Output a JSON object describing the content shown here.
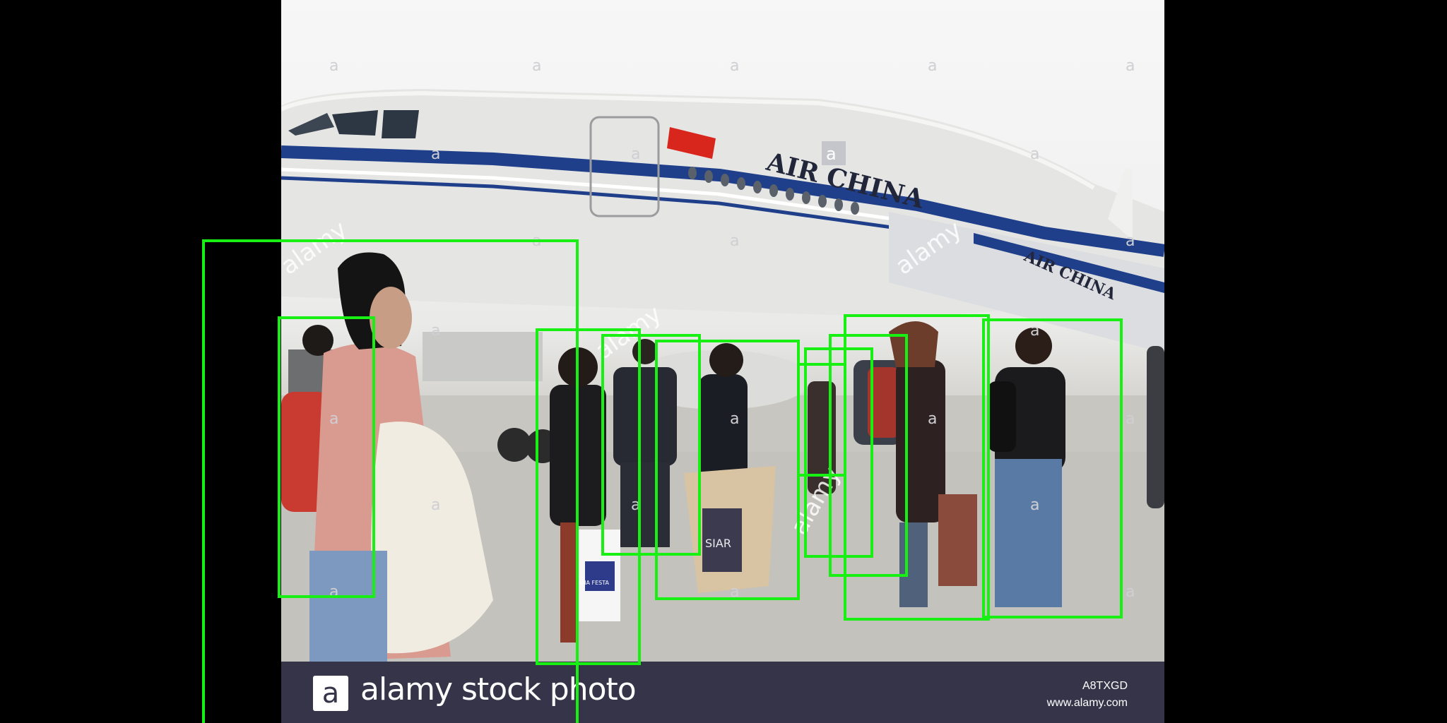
{
  "image": {
    "subject": "passengers walking toward a plane on the tarmac",
    "airline_lettering_front": "AIR CHINA",
    "airline_lettering_stairs": "AIR CHINA",
    "bag_lettering_white": "ANA FESTA",
    "bag_lettering_dark": "SIAR",
    "watermark": "alamy",
    "watermark_mark": "a"
  },
  "footer": {
    "logo_mark": "a",
    "brand": "alamy stock photo",
    "image_id": "A8TXGD",
    "site": "www.alamy.com"
  },
  "detections": {
    "label": "person",
    "count": 10,
    "box_color": "#18f013"
  },
  "colors": {
    "page_background": "#000000",
    "footer_background": "#353449",
    "fuselage_stripe": "#1f3f8a",
    "flag_red": "#d8261d"
  }
}
